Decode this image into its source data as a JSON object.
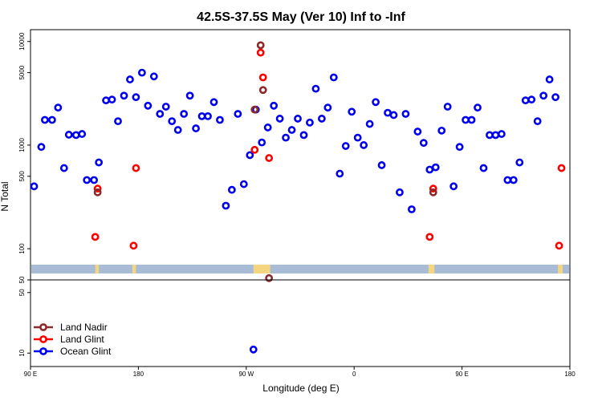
{
  "chart_data": {
    "type": "scatter",
    "title": "42.5S-37.5S May (Ver 10)   Inf to -Inf",
    "xlabel": "Longitude (deg E)",
    "ylabel": "N Total",
    "y_scale": "log",
    "upper_panel": {
      "ylim": [
        50,
        13000
      ],
      "y_ticks": [
        "50",
        "100",
        "500",
        "1000",
        "5000",
        "10000"
      ]
    },
    "lower_panel": {
      "ylim": [
        7,
        70
      ],
      "y_ticks": [
        "10",
        "50"
      ]
    },
    "x_ticks": [
      "90 E",
      "180",
      "90 W",
      "0",
      "90 E",
      "180"
    ],
    "x_tick_values": [
      90,
      180,
      270,
      360,
      450,
      540
    ],
    "xlim": [
      90,
      540
    ],
    "legend_position": "bottom-left",
    "colors": {
      "land_nadir": "#8b2a2a",
      "land_glint": "#ff0000",
      "ocean_glint": "#0000ee",
      "ocean_band": "#a8bcd8",
      "land_band": "#f5d680"
    },
    "series": [
      {
        "name": "Land Nadir",
        "color": "#8b2a2a",
        "points": [
          [
            146,
            350
          ],
          [
            426,
            350
          ],
          [
            277,
            2200
          ],
          [
            282,
            9200
          ],
          [
            284,
            3400
          ],
          [
            289,
            52
          ]
        ]
      },
      {
        "name": "Land Glint",
        "color": "#ff0000",
        "points": [
          [
            144,
            130
          ],
          [
            146,
            380
          ],
          [
            176,
            107
          ],
          [
            178,
            600
          ],
          [
            277,
            900
          ],
          [
            284,
            4500
          ],
          [
            289,
            750
          ],
          [
            423,
            130
          ],
          [
            426,
            380
          ],
          [
            531,
            107
          ],
          [
            533,
            600
          ],
          [
            282,
            7800
          ]
        ]
      },
      {
        "name": "Ocean Glint",
        "color": "#0000ee",
        "points": [
          [
            93,
            400
          ],
          [
            99,
            960
          ],
          [
            102,
            1750
          ],
          [
            108,
            1750
          ],
          [
            113,
            2300
          ],
          [
            118,
            600
          ],
          [
            122,
            1260
          ],
          [
            128,
            1250
          ],
          [
            133,
            1280
          ],
          [
            137,
            460
          ],
          [
            143,
            460
          ],
          [
            147,
            680
          ],
          [
            153,
            2700
          ],
          [
            158,
            2750
          ],
          [
            163,
            1700
          ],
          [
            168,
            3000
          ],
          [
            173,
            4300
          ],
          [
            178,
            2900
          ],
          [
            183,
            5000
          ],
          [
            188,
            2400
          ],
          [
            193,
            4600
          ],
          [
            198,
            2000
          ],
          [
            203,
            2350
          ],
          [
            208,
            1700
          ],
          [
            213,
            1400
          ],
          [
            218,
            2000
          ],
          [
            223,
            3000
          ],
          [
            228,
            1450
          ],
          [
            233,
            1900
          ],
          [
            238,
            1900
          ],
          [
            243,
            2600
          ],
          [
            248,
            1750
          ],
          [
            253,
            260
          ],
          [
            258,
            370
          ],
          [
            263,
            2000
          ],
          [
            268,
            420
          ],
          [
            273,
            800
          ],
          [
            278,
            2200
          ],
          [
            283,
            1060
          ],
          [
            288,
            1480
          ],
          [
            293,
            2400
          ],
          [
            298,
            1800
          ],
          [
            303,
            1180
          ],
          [
            308,
            1400
          ],
          [
            313,
            1800
          ],
          [
            318,
            1250
          ],
          [
            323,
            1650
          ],
          [
            328,
            3500
          ],
          [
            333,
            1800
          ],
          [
            338,
            2300
          ],
          [
            343,
            4500
          ],
          [
            348,
            530
          ],
          [
            353,
            980
          ],
          [
            358,
            2100
          ],
          [
            363,
            1180
          ],
          [
            368,
            1000
          ],
          [
            373,
            1600
          ],
          [
            378,
            2600
          ],
          [
            383,
            640
          ],
          [
            388,
            2050
          ],
          [
            393,
            1950
          ],
          [
            398,
            350
          ],
          [
            403,
            2000
          ],
          [
            408,
            240
          ],
          [
            413,
            1350
          ],
          [
            418,
            1050
          ],
          [
            423,
            580
          ],
          [
            428,
            610
          ],
          [
            433,
            1380
          ],
          [
            438,
            2350
          ],
          [
            443,
            400
          ],
          [
            448,
            960
          ],
          [
            453,
            1750
          ],
          [
            458,
            1750
          ],
          [
            463,
            2300
          ],
          [
            468,
            600
          ],
          [
            473,
            1250
          ],
          [
            478,
            1250
          ],
          [
            483,
            1280
          ],
          [
            488,
            460
          ],
          [
            493,
            460
          ],
          [
            498,
            680
          ],
          [
            503,
            2700
          ],
          [
            508,
            2750
          ],
          [
            513,
            1700
          ],
          [
            518,
            3000
          ],
          [
            523,
            4300
          ],
          [
            528,
            2900
          ],
          [
            276,
            11
          ]
        ]
      }
    ]
  }
}
